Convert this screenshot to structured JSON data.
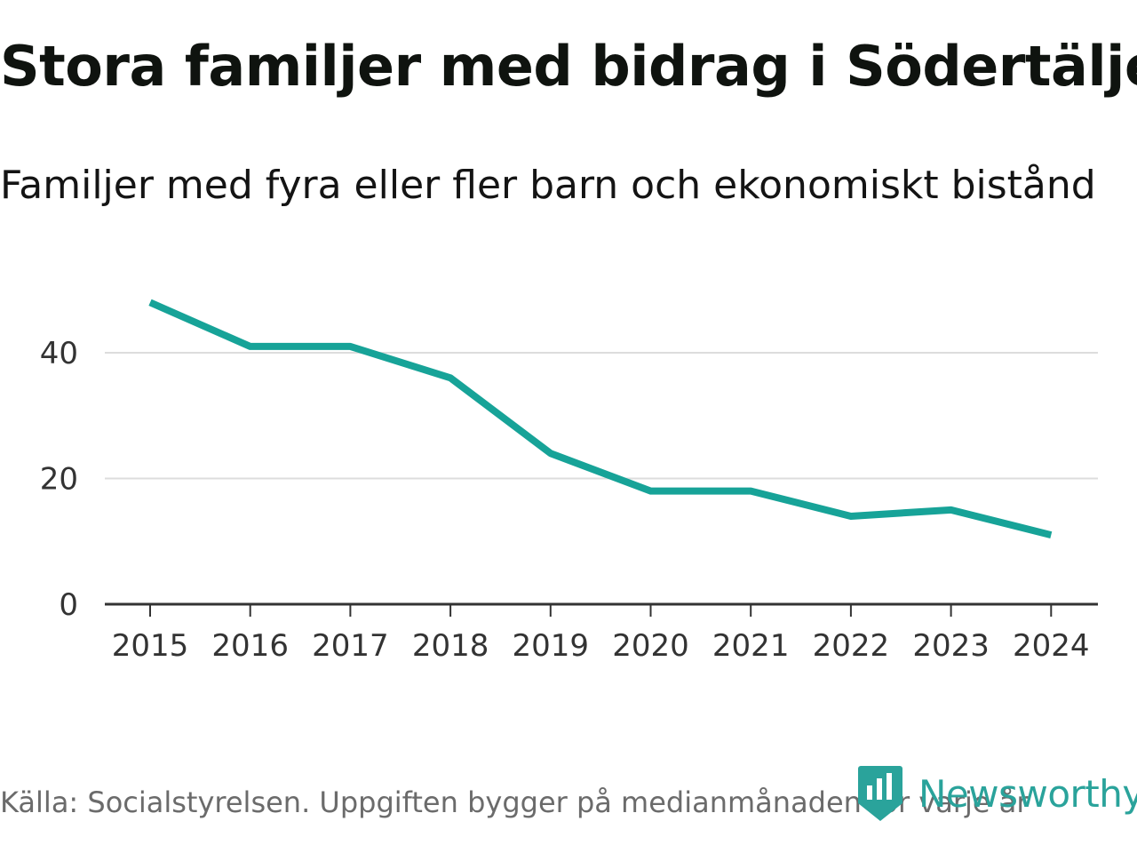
{
  "title": "Stora familjer med bidrag i Södertälje",
  "subtitle": "Familjer med fyra eller fler barn och ekonomiskt bistånd",
  "footer": {
    "source": "Källa: Socialstyrelsen. Uppgiften bygger på medianmånaden för varje år"
  },
  "brand": {
    "name": "Newsworthy",
    "icon": "newsworthy-logo-icon"
  },
  "colors": {
    "line": "#17a398",
    "grid": "#dddddd",
    "axis": "#333333",
    "brand": "#2aa39b"
  },
  "chart_data": {
    "type": "line",
    "title": "Stora familjer med bidrag i Södertälje",
    "subtitle": "Familjer med fyra eller fler barn och ekonomiskt bistånd",
    "xlabel": "",
    "ylabel": "",
    "categories": [
      "2015",
      "2016",
      "2017",
      "2018",
      "2019",
      "2020",
      "2021",
      "2022",
      "2023",
      "2024"
    ],
    "series": [
      {
        "name": "Familjer",
        "values": [
          48,
          41,
          41,
          36,
          24,
          18,
          18,
          14,
          15,
          11
        ]
      }
    ],
    "yticks": [
      "0",
      "20",
      "40"
    ],
    "ylim": [
      0,
      50
    ],
    "grid": true
  }
}
